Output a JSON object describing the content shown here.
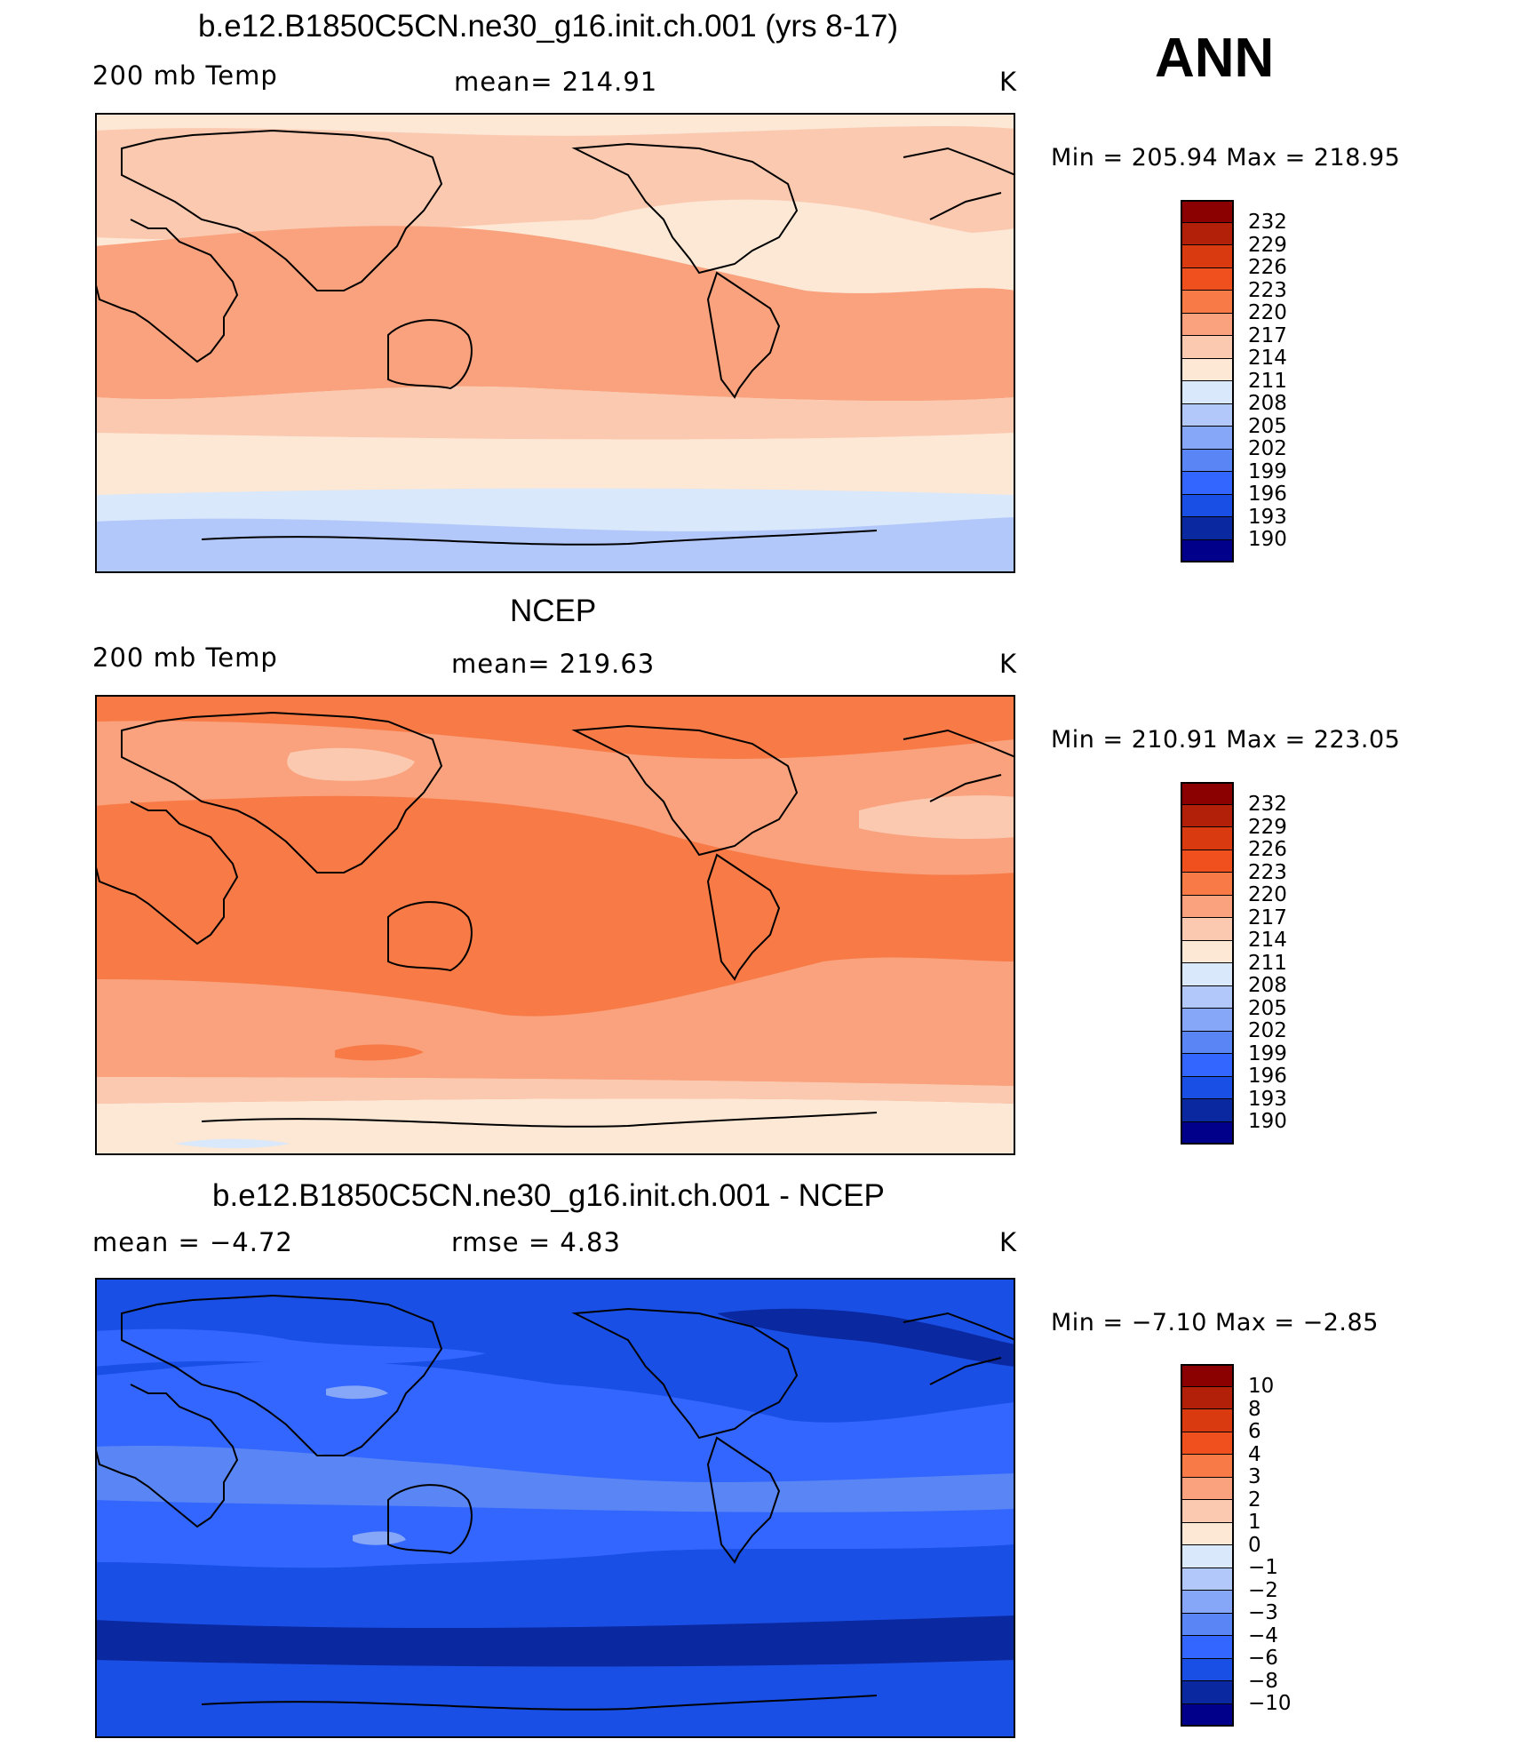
{
  "season": "ANN",
  "panels": [
    {
      "title": "b.e12.B1850C5CN.ne30_g16.init.ch.001 (yrs 8-17)",
      "left_label": "200 mb Temp",
      "center_label": "mean=  214.91",
      "units": "K",
      "minmax": "Min  =  205.94  Max  =  218.95",
      "colorbar": [
        "232",
        "229",
        "226",
        "223",
        "220",
        "217",
        "214",
        "211",
        "208",
        "205",
        "202",
        "199",
        "196",
        "193",
        "190"
      ]
    },
    {
      "title": "NCEP",
      "left_label": "200 mb Temp",
      "center_label": "mean=  219.63",
      "units": "K",
      "minmax": "Min  =  210.91  Max  =  223.05",
      "colorbar": [
        "232",
        "229",
        "226",
        "223",
        "220",
        "217",
        "214",
        "211",
        "208",
        "205",
        "202",
        "199",
        "196",
        "193",
        "190"
      ]
    },
    {
      "title": "b.e12.B1850C5CN.ne30_g16.init.ch.001 - NCEP",
      "left_label": "mean  =    −4.72",
      "center_label": "rmse  =     4.83",
      "units": "K",
      "minmax": "Min  =    −7.10  Max  =    −2.85",
      "colorbar": [
        "10",
        "8",
        "6",
        "4",
        "3",
        "2",
        "1",
        "0",
        "−1",
        "−2",
        "−3",
        "−4",
        "−6",
        "−8",
        "−10"
      ]
    }
  ],
  "colors": {
    "scale": [
      "#00008b",
      "#0a28a0",
      "#0033cc",
      "#1a4fe6",
      "#3366ff",
      "#5a86f5",
      "#86a6f7",
      "#b3c8fa",
      "#d9e8fa",
      "#fde7d5",
      "#fbc9b0",
      "#f9a27d",
      "#f77a47",
      "#f0501e",
      "#d93a0f",
      "#b3200a",
      "#8b0000"
    ]
  }
}
